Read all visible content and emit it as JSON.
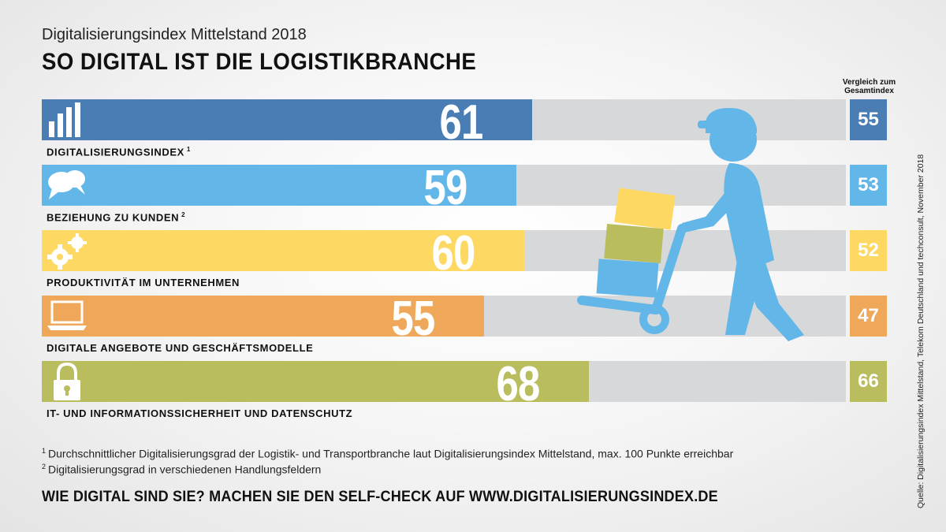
{
  "header": {
    "subtitle": "Digitalisierungsindex Mittelstand 2018",
    "title": "SO DIGITAL IST DIE LOGISTIKBRANCHE",
    "compare_heading": "Vergleich zum Gesamtindex"
  },
  "chart_data": {
    "type": "bar",
    "orientation": "horizontal",
    "title": "SO DIGITAL IST DIE LOGISTIKBRANCHE",
    "xlim": [
      0,
      100
    ],
    "categories": [
      "DIGITALISIERUNGSINDEX",
      "BEZIEHUNG ZU KUNDEN",
      "PRODUKTIVITÄT IM UNTERNEHMEN",
      "DIGITALE ANGEBOTE UND GESCHÄFTSMODELLE",
      "IT- UND INFORMATIONSSICHERHEIT UND DATENSCHUTZ"
    ],
    "footnote_marks": [
      "1",
      "2",
      "",
      "",
      ""
    ],
    "series": [
      {
        "name": "Logistikbranche",
        "values": [
          61,
          59,
          60,
          55,
          68
        ]
      },
      {
        "name": "Vergleich zum Gesamtindex",
        "values": [
          55,
          53,
          52,
          47,
          66
        ]
      }
    ],
    "icons": [
      "bar-chart-icon",
      "speech-bubbles-icon",
      "gears-icon",
      "laptop-icon",
      "padlock-icon"
    ],
    "colors": [
      "#4a7db3",
      "#62b6e8",
      "#fdd964",
      "#efa75a",
      "#b9bd5d"
    ],
    "track_color": "#d6d8da"
  },
  "footnotes": {
    "fn1_mark": "1",
    "fn1": "Durchschnittlicher Digitalisierungsgrad der Logistik- und Transportbranche laut Digitalisierungsindex Mittelstand, max. 100 Punkte erreichbar",
    "fn2_mark": "2",
    "fn2": "Digitalisierungsgrad in verschiedenen Handlungsfeldern"
  },
  "cta": "WIE DIGITAL SIND SIE? MACHEN SIE DEN SELF-CHECK AUF WWW.DIGITALISIERUNGSINDEX.DE",
  "source": "Quelle: Digitalisierungsindex Mittelstand, Telekom Deutschland und techconsult, November 2018",
  "illustration": {
    "name": "worker-with-hand-truck-icon",
    "color": "#62b6e8"
  }
}
